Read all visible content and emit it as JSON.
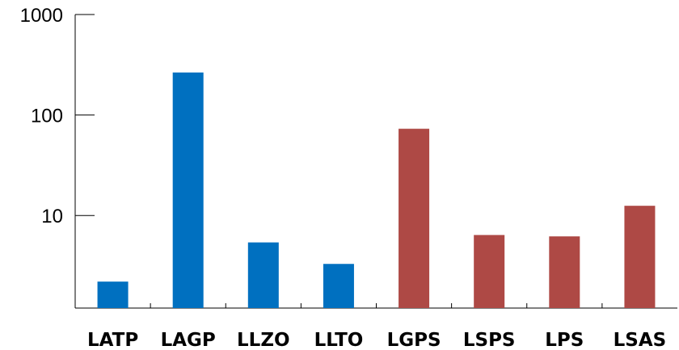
{
  "chart_data": {
    "type": "bar",
    "scale": "log",
    "ylim": [
      1.2,
      1000
    ],
    "yticks": [
      {
        "value": 10,
        "label": "10"
      },
      {
        "value": 100,
        "label": "100"
      },
      {
        "value": 1000,
        "label": "1000"
      }
    ],
    "categories": [
      "LATP",
      "LAGP",
      "LLZO",
      "LLTO",
      "LGPS",
      "LSPS",
      "LPS",
      "LSAS"
    ],
    "values": [
      2.2,
      265,
      5.4,
      3.3,
      73,
      6.4,
      6.2,
      12.5
    ],
    "bar_colors": [
      "#0070c0",
      "#0070c0",
      "#0070c0",
      "#0070c0",
      "#ae4945",
      "#ae4945",
      "#ae4945",
      "#ae4945"
    ],
    "title": "",
    "xlabel": "",
    "ylabel": "",
    "grid": false
  }
}
